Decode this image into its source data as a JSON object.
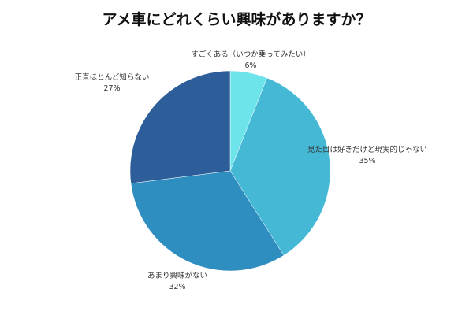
{
  "chart_data": {
    "type": "pie",
    "title": "アメ車にどれくらい興味がありますか？",
    "slices": [
      {
        "label": "すごくある（いつか乗ってみたい）",
        "value": 6,
        "value_label": "6%",
        "color": "#6ce4ea"
      },
      {
        "label": "見た目は好きだけど現実的じゃない",
        "value": 35,
        "value_label": "35%",
        "color": "#45b8d6"
      },
      {
        "label": "あまり興味がない",
        "value": 32,
        "value_label": "32%",
        "color": "#2f8ec0"
      },
      {
        "label": "正直ほとんど知らない",
        "value": 27,
        "value_label": "27%",
        "color": "#2e5e9a"
      }
    ],
    "start_angle": "12 o'clock",
    "direction": "clockwise",
    "legend": "none"
  }
}
